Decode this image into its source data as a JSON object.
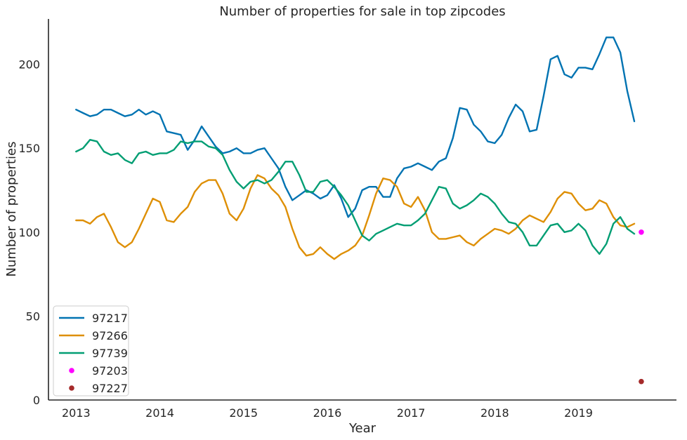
{
  "chart_data": {
    "type": "line",
    "title": "Number of properties for sale in top zipcodes",
    "xlabel": "Year",
    "ylabel": "Number of properties",
    "xlim": [
      2012.67,
      2020.17
    ],
    "ylim": [
      0,
      227
    ],
    "x_ticks": [
      "2013",
      "2014",
      "2015",
      "2016",
      "2017",
      "2018",
      "2019"
    ],
    "y_ticks": [
      "0",
      "50",
      "100",
      "150",
      "200"
    ],
    "grid": false,
    "legend": "lower-left",
    "series": [
      {
        "name": "97217",
        "kind": "line",
        "color": "#0173b2",
        "points": [
          [
            2013.0,
            173
          ],
          [
            2013.083,
            171
          ],
          [
            2013.167,
            169
          ],
          [
            2013.25,
            170
          ],
          [
            2013.333,
            173
          ],
          [
            2013.417,
            173
          ],
          [
            2013.5,
            171
          ],
          [
            2013.583,
            169
          ],
          [
            2013.667,
            170
          ],
          [
            2013.75,
            173
          ],
          [
            2013.833,
            170
          ],
          [
            2013.917,
            172
          ],
          [
            2014.0,
            170
          ],
          [
            2014.083,
            160
          ],
          [
            2014.167,
            159
          ],
          [
            2014.25,
            158
          ],
          [
            2014.333,
            149
          ],
          [
            2014.417,
            155
          ],
          [
            2014.5,
            163
          ],
          [
            2014.583,
            157
          ],
          [
            2014.667,
            151
          ],
          [
            2014.75,
            147
          ],
          [
            2014.833,
            148
          ],
          [
            2014.917,
            150
          ],
          [
            2015.0,
            147
          ],
          [
            2015.083,
            147
          ],
          [
            2015.167,
            149
          ],
          [
            2015.25,
            150
          ],
          [
            2015.333,
            144
          ],
          [
            2015.417,
            138
          ],
          [
            2015.5,
            127
          ],
          [
            2015.583,
            119
          ],
          [
            2015.667,
            122
          ],
          [
            2015.75,
            125
          ],
          [
            2015.833,
            123
          ],
          [
            2015.917,
            120
          ],
          [
            2016.0,
            122
          ],
          [
            2016.083,
            128
          ],
          [
            2016.167,
            120
          ],
          [
            2016.25,
            109
          ],
          [
            2016.333,
            114
          ],
          [
            2016.417,
            125
          ],
          [
            2016.5,
            127
          ],
          [
            2016.583,
            127
          ],
          [
            2016.667,
            121
          ],
          [
            2016.75,
            121
          ],
          [
            2016.833,
            132
          ],
          [
            2016.917,
            138
          ],
          [
            2017.0,
            139
          ],
          [
            2017.083,
            141
          ],
          [
            2017.167,
            139
          ],
          [
            2017.25,
            137
          ],
          [
            2017.333,
            142
          ],
          [
            2017.417,
            144
          ],
          [
            2017.5,
            156
          ],
          [
            2017.583,
            174
          ],
          [
            2017.667,
            173
          ],
          [
            2017.75,
            164
          ],
          [
            2017.833,
            160
          ],
          [
            2017.917,
            154
          ],
          [
            2018.0,
            153
          ],
          [
            2018.083,
            158
          ],
          [
            2018.167,
            168
          ],
          [
            2018.25,
            176
          ],
          [
            2018.333,
            172
          ],
          [
            2018.417,
            160
          ],
          [
            2018.5,
            161
          ],
          [
            2018.583,
            181
          ],
          [
            2018.667,
            203
          ],
          [
            2018.75,
            205
          ],
          [
            2018.833,
            194
          ],
          [
            2018.917,
            192
          ],
          [
            2019.0,
            198
          ],
          [
            2019.083,
            198
          ],
          [
            2019.167,
            197
          ],
          [
            2019.25,
            206
          ],
          [
            2019.333,
            216
          ],
          [
            2019.417,
            216
          ],
          [
            2019.5,
            207
          ],
          [
            2019.583,
            184
          ],
          [
            2019.667,
            166
          ]
        ]
      },
      {
        "name": "97266",
        "kind": "line",
        "color": "#de8f05",
        "points": [
          [
            2013.0,
            107
          ],
          [
            2013.083,
            107
          ],
          [
            2013.167,
            105
          ],
          [
            2013.25,
            109
          ],
          [
            2013.333,
            111
          ],
          [
            2013.417,
            103
          ],
          [
            2013.5,
            94
          ],
          [
            2013.583,
            91
          ],
          [
            2013.667,
            94
          ],
          [
            2013.75,
            102
          ],
          [
            2013.833,
            111
          ],
          [
            2013.917,
            120
          ],
          [
            2014.0,
            118
          ],
          [
            2014.083,
            107
          ],
          [
            2014.167,
            106
          ],
          [
            2014.25,
            111
          ],
          [
            2014.333,
            115
          ],
          [
            2014.417,
            124
          ],
          [
            2014.5,
            129
          ],
          [
            2014.583,
            131
          ],
          [
            2014.667,
            131
          ],
          [
            2014.75,
            123
          ],
          [
            2014.833,
            111
          ],
          [
            2014.917,
            107
          ],
          [
            2015.0,
            114
          ],
          [
            2015.083,
            126
          ],
          [
            2015.167,
            134
          ],
          [
            2015.25,
            132
          ],
          [
            2015.333,
            126
          ],
          [
            2015.417,
            122
          ],
          [
            2015.5,
            115
          ],
          [
            2015.583,
            102
          ],
          [
            2015.667,
            91
          ],
          [
            2015.75,
            86
          ],
          [
            2015.833,
            87
          ],
          [
            2015.917,
            91
          ],
          [
            2016.0,
            87
          ],
          [
            2016.083,
            84
          ],
          [
            2016.167,
            87
          ],
          [
            2016.25,
            89
          ],
          [
            2016.333,
            92
          ],
          [
            2016.417,
            98
          ],
          [
            2016.5,
            110
          ],
          [
            2016.583,
            123
          ],
          [
            2016.667,
            132
          ],
          [
            2016.75,
            131
          ],
          [
            2016.833,
            127
          ],
          [
            2016.917,
            117
          ],
          [
            2017.0,
            115
          ],
          [
            2017.083,
            121
          ],
          [
            2017.167,
            113
          ],
          [
            2017.25,
            100
          ],
          [
            2017.333,
            96
          ],
          [
            2017.417,
            96
          ],
          [
            2017.5,
            97
          ],
          [
            2017.583,
            98
          ],
          [
            2017.667,
            94
          ],
          [
            2017.75,
            92
          ],
          [
            2017.833,
            96
          ],
          [
            2017.917,
            99
          ],
          [
            2018.0,
            102
          ],
          [
            2018.083,
            101
          ],
          [
            2018.167,
            99
          ],
          [
            2018.25,
            102
          ],
          [
            2018.333,
            107
          ],
          [
            2018.417,
            110
          ],
          [
            2018.5,
            108
          ],
          [
            2018.583,
            106
          ],
          [
            2018.667,
            112
          ],
          [
            2018.75,
            120
          ],
          [
            2018.833,
            124
          ],
          [
            2018.917,
            123
          ],
          [
            2019.0,
            117
          ],
          [
            2019.083,
            113
          ],
          [
            2019.167,
            114
          ],
          [
            2019.25,
            119
          ],
          [
            2019.333,
            117
          ],
          [
            2019.417,
            109
          ],
          [
            2019.5,
            104
          ],
          [
            2019.583,
            103
          ],
          [
            2019.667,
            105
          ]
        ]
      },
      {
        "name": "97739",
        "kind": "line",
        "color": "#029e73",
        "points": [
          [
            2013.0,
            148
          ],
          [
            2013.083,
            150
          ],
          [
            2013.167,
            155
          ],
          [
            2013.25,
            154
          ],
          [
            2013.333,
            148
          ],
          [
            2013.417,
            146
          ],
          [
            2013.5,
            147
          ],
          [
            2013.583,
            143
          ],
          [
            2013.667,
            141
          ],
          [
            2013.75,
            147
          ],
          [
            2013.833,
            148
          ],
          [
            2013.917,
            146
          ],
          [
            2014.0,
            147
          ],
          [
            2014.083,
            147
          ],
          [
            2014.167,
            149
          ],
          [
            2014.25,
            154
          ],
          [
            2014.333,
            153
          ],
          [
            2014.417,
            154
          ],
          [
            2014.5,
            154
          ],
          [
            2014.583,
            151
          ],
          [
            2014.667,
            150
          ],
          [
            2014.75,
            146
          ],
          [
            2014.833,
            137
          ],
          [
            2014.917,
            130
          ],
          [
            2015.0,
            126
          ],
          [
            2015.083,
            130
          ],
          [
            2015.167,
            131
          ],
          [
            2015.25,
            129
          ],
          [
            2015.333,
            131
          ],
          [
            2015.417,
            136
          ],
          [
            2015.5,
            142
          ],
          [
            2015.583,
            142
          ],
          [
            2015.667,
            134
          ],
          [
            2015.75,
            124
          ],
          [
            2015.833,
            124
          ],
          [
            2015.917,
            130
          ],
          [
            2016.0,
            131
          ],
          [
            2016.083,
            127
          ],
          [
            2016.167,
            122
          ],
          [
            2016.25,
            116
          ],
          [
            2016.333,
            107
          ],
          [
            2016.417,
            98
          ],
          [
            2016.5,
            95
          ],
          [
            2016.583,
            99
          ],
          [
            2016.667,
            101
          ],
          [
            2016.75,
            103
          ],
          [
            2016.833,
            105
          ],
          [
            2016.917,
            104
          ],
          [
            2017.0,
            104
          ],
          [
            2017.083,
            107
          ],
          [
            2017.167,
            111
          ],
          [
            2017.25,
            119
          ],
          [
            2017.333,
            127
          ],
          [
            2017.417,
            126
          ],
          [
            2017.5,
            117
          ],
          [
            2017.583,
            114
          ],
          [
            2017.667,
            116
          ],
          [
            2017.75,
            119
          ],
          [
            2017.833,
            123
          ],
          [
            2017.917,
            121
          ],
          [
            2018.0,
            117
          ],
          [
            2018.083,
            111
          ],
          [
            2018.167,
            106
          ],
          [
            2018.25,
            105
          ],
          [
            2018.333,
            100
          ],
          [
            2018.417,
            92
          ],
          [
            2018.5,
            92
          ],
          [
            2018.583,
            98
          ],
          [
            2018.667,
            104
          ],
          [
            2018.75,
            105
          ],
          [
            2018.833,
            100
          ],
          [
            2018.917,
            101
          ],
          [
            2019.0,
            105
          ],
          [
            2019.083,
            101
          ],
          [
            2019.167,
            92
          ],
          [
            2019.25,
            87
          ],
          [
            2019.333,
            93
          ],
          [
            2019.417,
            105
          ],
          [
            2019.5,
            109
          ],
          [
            2019.583,
            102
          ],
          [
            2019.667,
            99
          ]
        ]
      },
      {
        "name": "97203",
        "kind": "point",
        "color": "#ff00ff",
        "points": [
          [
            2019.75,
            100
          ]
        ]
      },
      {
        "name": "97227",
        "kind": "point",
        "color": "#a52a2a",
        "points": [
          [
            2019.75,
            11
          ]
        ]
      }
    ]
  }
}
